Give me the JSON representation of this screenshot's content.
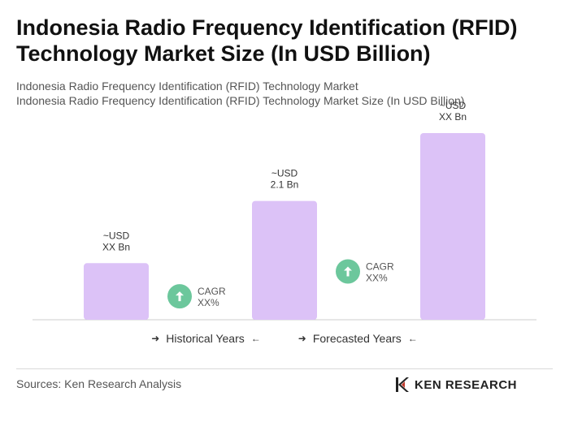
{
  "header": {
    "title": "Indonesia Radio Frequency Identification (RFID) Technology Market Size (In USD Billion)",
    "subtitle_1": "Indonesia Radio Frequency Identification (RFID) Technology Market",
    "subtitle_2": "Indonesia Radio Frequency Identification (RFID) Technology Market Size (In USD Billion)"
  },
  "chart_data": {
    "type": "bar",
    "categories": [
      "",
      "",
      ""
    ],
    "values": [
      1.0,
      2.1,
      3.3
    ],
    "value_labels": [
      [
        "~USD",
        "XX Bn"
      ],
      [
        "~USD",
        "2.1 Bn"
      ],
      [
        "~USD",
        "XX Bn"
      ]
    ],
    "bar_color": "#dcc2f7",
    "cagr_badges": [
      {
        "label": "CAGR",
        "value": "XX%"
      },
      {
        "label": "CAGR",
        "value": "XX%"
      }
    ],
    "badge_color": "#6cc79c",
    "ylim": [
      0,
      3.3
    ],
    "grid": false,
    "legend": [
      "Historical Years",
      "Forecasted Years"
    ],
    "legend_placement": "bottom"
  },
  "footer": {
    "sources": "Sources: Ken Research Analysis",
    "logo_text": "KEN RESEARCH"
  }
}
